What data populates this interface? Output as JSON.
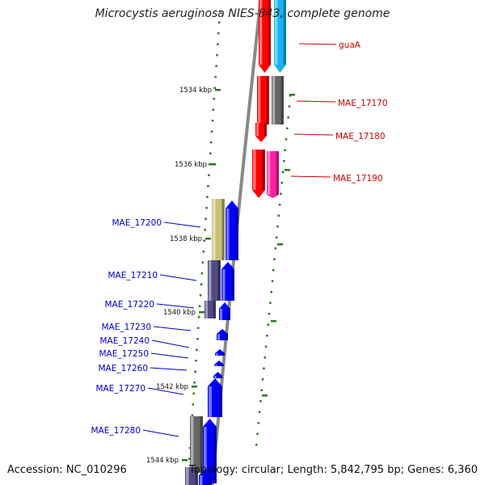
{
  "title": "Microcystis aeruginosa NIES-843, complete genome",
  "accession": "Accession: NC_010296",
  "summary": "Topology: circular; Length: 5,842,795 bp; Genes: 6,360",
  "tick_labels": [
    "1534 kbp",
    "1536 kbp",
    "1538 kbp",
    "1540 kbp",
    "1542 kbp",
    "1544 kbp"
  ],
  "colors": {
    "forward_label": "#cc0000",
    "reverse_label": "#0000cc",
    "backbone": "#888888",
    "ticks": "#2a7a1e",
    "red_feature": "#ff0000",
    "blue_feature": "#0000ff",
    "cyan_feature": "#1ab3f0",
    "gray_feature": "#666666",
    "magenta_feature": "#ff1fa0",
    "khaki_feature": "#c8bf78",
    "purple_feature": "#4f4a80"
  },
  "forward_genes": [
    "guaA",
    "MAE_17170",
    "MAE_17180",
    "MAE_17190"
  ],
  "reverse_genes": [
    "MAE_17200",
    "MAE_17210",
    "MAE_17220",
    "MAE_17230",
    "MAE_17240",
    "MAE_17250",
    "MAE_17260",
    "MAE_17270",
    "MAE_17280"
  ]
}
